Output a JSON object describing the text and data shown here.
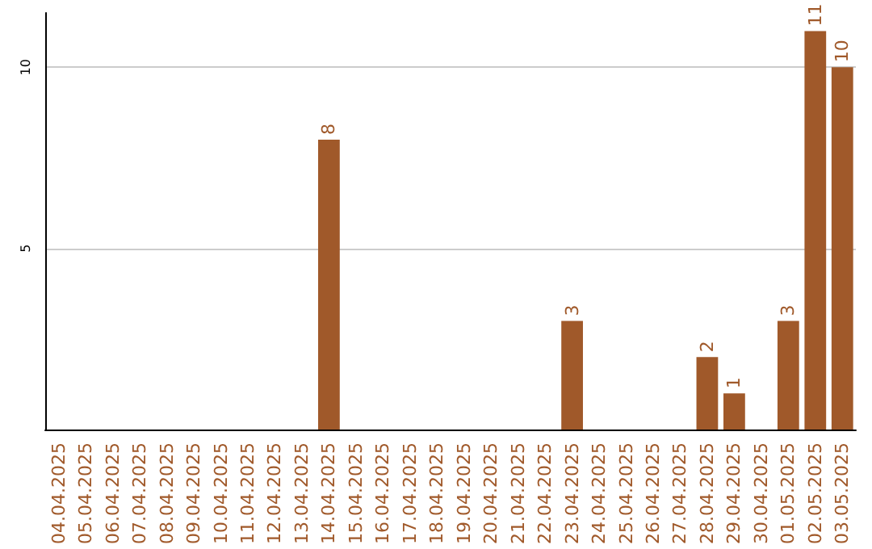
{
  "chart_data": {
    "type": "bar",
    "categories": [
      "04.04.2025",
      "05.04.2025",
      "06.04.2025",
      "07.04.2025",
      "08.04.2025",
      "09.04.2025",
      "10.04.2025",
      "11.04.2025",
      "12.04.2025",
      "13.04.2025",
      "14.04.2025",
      "15.04.2025",
      "16.04.2025",
      "17.04.2025",
      "18.04.2025",
      "19.04.2025",
      "20.04.2025",
      "21.04.2025",
      "22.04.2025",
      "23.04.2025",
      "24.04.2025",
      "25.04.2025",
      "26.04.2025",
      "27.04.2025",
      "28.04.2025",
      "29.04.2025",
      "30.04.2025",
      "01.05.2025",
      "02.05.2025",
      "03.05.2025"
    ],
    "values": [
      0,
      0,
      0,
      0,
      0,
      0,
      0,
      0,
      0,
      0,
      8,
      0,
      0,
      0,
      0,
      0,
      0,
      0,
      0,
      3,
      0,
      0,
      0,
      0,
      2,
      1,
      0,
      3,
      11,
      10
    ],
    "value_labels": [
      null,
      null,
      null,
      null,
      null,
      null,
      null,
      null,
      null,
      null,
      "8",
      null,
      null,
      null,
      null,
      null,
      null,
      null,
      null,
      "3",
      null,
      null,
      null,
      null,
      "2",
      "1",
      null,
      "3",
      "11",
      "10"
    ],
    "color": "#a0592a",
    "ylim": [
      0,
      11.5
    ],
    "yticks": [
      5,
      10
    ],
    "grid": "y"
  }
}
